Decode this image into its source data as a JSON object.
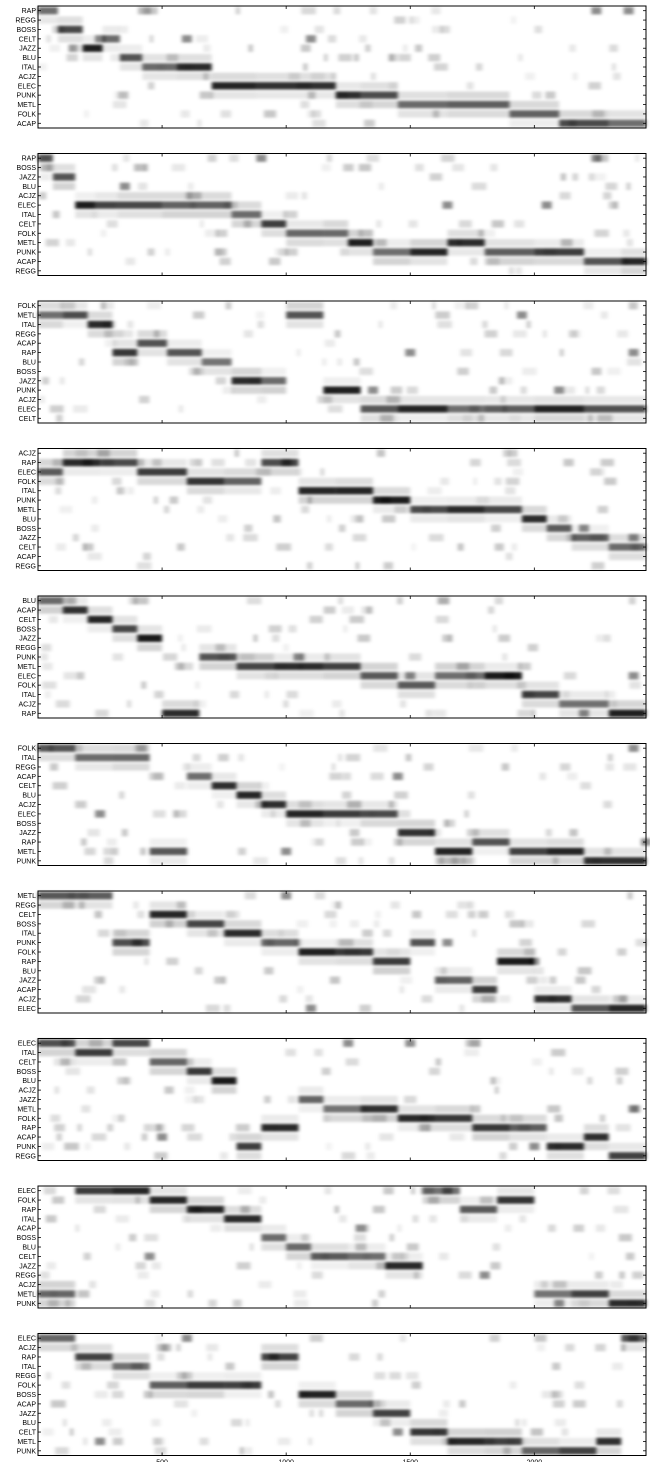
{
  "chart_data": {
    "type": "heatmap",
    "xlim": [
      0,
      2450
    ],
    "x_ticks": [
      500,
      1000,
      1500,
      2000
    ],
    "x_tick_labels": [
      "500",
      "1000",
      "1500",
      "2000"
    ],
    "colormap": "gray_r",
    "panels": [
      {
        "rows": [
          "RAP",
          "REGG",
          "BOSS",
          "CELT",
          "JAZZ",
          "BLU",
          "ITAL",
          "ACJZ",
          "ELEC",
          "PUNK",
          "METL",
          "FOLK",
          "ACAP"
        ],
        "path": [
          [
            0,
            80,
            0
          ],
          [
            80,
            180,
            2
          ],
          [
            180,
            260,
            4
          ],
          [
            260,
            330,
            3
          ],
          [
            330,
            420,
            5
          ],
          [
            420,
            560,
            6
          ],
          [
            560,
            700,
            6
          ],
          [
            700,
            880,
            8
          ],
          [
            880,
            1200,
            8
          ],
          [
            1200,
            1300,
            9
          ],
          [
            1300,
            1450,
            9
          ],
          [
            1450,
            1650,
            10
          ],
          [
            1650,
            1900,
            10
          ],
          [
            1900,
            2100,
            11
          ],
          [
            2100,
            2300,
            12
          ],
          [
            2300,
            2450,
            12
          ]
        ],
        "spots": [
          [
            250,
            3
          ],
          [
            600,
            3
          ],
          [
            1100,
            3
          ],
          [
            2250,
            0
          ],
          [
            2380,
            0
          ]
        ]
      },
      {
        "rows": [
          "RAP",
          "BOSS",
          "JAZZ",
          "BLU",
          "ACJZ",
          "ELEC",
          "ITAL",
          "CELT",
          "FOLK",
          "METL",
          "PUNK",
          "ACAP",
          "REGG"
        ],
        "path": [
          [
            0,
            60,
            0
          ],
          [
            60,
            150,
            2
          ],
          [
            150,
            230,
            5
          ],
          [
            230,
            320,
            5
          ],
          [
            320,
            500,
            5
          ],
          [
            500,
            780,
            5
          ],
          [
            780,
            900,
            6
          ],
          [
            900,
            1000,
            7
          ],
          [
            1000,
            1150,
            8
          ],
          [
            1150,
            1250,
            8
          ],
          [
            1250,
            1350,
            9
          ],
          [
            1350,
            1500,
            10
          ],
          [
            1500,
            1650,
            10
          ],
          [
            1650,
            1800,
            9
          ],
          [
            1800,
            2000,
            10
          ],
          [
            2000,
            2200,
            10
          ],
          [
            2200,
            2350,
            11
          ],
          [
            2350,
            2450,
            11
          ]
        ],
        "spots": [
          [
            900,
            0
          ],
          [
            1650,
            5
          ],
          [
            2050,
            5
          ],
          [
            350,
            3
          ],
          [
            2250,
            0
          ]
        ]
      },
      {
        "rows": [
          "FOLK",
          "METL",
          "ITAL",
          "REGG",
          "ACAP",
          "RAP",
          "BLU",
          "BOSS",
          "JAZZ",
          "PUNK",
          "ACJZ",
          "ELEC",
          "CELT"
        ],
        "path": [
          [
            0,
            100,
            1
          ],
          [
            100,
            200,
            1
          ],
          [
            200,
            300,
            2
          ],
          [
            300,
            400,
            5
          ],
          [
            400,
            520,
            4
          ],
          [
            520,
            660,
            5
          ],
          [
            660,
            780,
            6
          ],
          [
            780,
            900,
            8
          ],
          [
            900,
            1000,
            8
          ],
          [
            1000,
            1150,
            1
          ],
          [
            1150,
            1300,
            9
          ],
          [
            1300,
            1450,
            11
          ],
          [
            1450,
            1650,
            11
          ],
          [
            1650,
            1800,
            11
          ],
          [
            1800,
            2000,
            11
          ],
          [
            2000,
            2200,
            11
          ],
          [
            2200,
            2450,
            11
          ]
        ],
        "spots": [
          [
            1350,
            9
          ],
          [
            1950,
            1
          ],
          [
            2100,
            9
          ],
          [
            2400,
            5
          ],
          [
            1500,
            5
          ]
        ]
      },
      {
        "rows": [
          "ACJZ",
          "RAP",
          "ELEC",
          "FOLK",
          "ITAL",
          "PUNK",
          "METL",
          "BLU",
          "BOSS",
          "JAZZ",
          "CELT",
          "ACAP",
          "REGG"
        ],
        "path": [
          [
            0,
            100,
            2
          ],
          [
            100,
            250,
            1
          ],
          [
            250,
            400,
            1
          ],
          [
            400,
            600,
            2
          ],
          [
            600,
            750,
            3
          ],
          [
            750,
            900,
            3
          ],
          [
            900,
            1050,
            1
          ],
          [
            1050,
            1200,
            4
          ],
          [
            1200,
            1350,
            4
          ],
          [
            1350,
            1500,
            5
          ],
          [
            1500,
            1650,
            6
          ],
          [
            1650,
            1800,
            6
          ],
          [
            1800,
            1950,
            6
          ],
          [
            1950,
            2050,
            7
          ],
          [
            2050,
            2150,
            8
          ],
          [
            2150,
            2300,
            9
          ],
          [
            2300,
            2450,
            10
          ]
        ],
        "spots": [
          [
            200,
            1
          ],
          [
            1000,
            1
          ],
          [
            1400,
            5
          ],
          [
            2200,
            8
          ],
          [
            2400,
            9
          ]
        ]
      },
      {
        "rows": [
          "BLU",
          "ACAP",
          "CELT",
          "BOSS",
          "JAZZ",
          "REGG",
          "PUNK",
          "METL",
          "ELEC",
          "FOLK",
          "ITAL",
          "ACJZ",
          "RAP"
        ],
        "path": [
          [
            0,
            100,
            0
          ],
          [
            100,
            200,
            1
          ],
          [
            200,
            300,
            2
          ],
          [
            300,
            400,
            3
          ],
          [
            400,
            500,
            4
          ],
          [
            500,
            650,
            12
          ],
          [
            650,
            800,
            6
          ],
          [
            800,
            950,
            7
          ],
          [
            950,
            1150,
            7
          ],
          [
            1150,
            1300,
            7
          ],
          [
            1300,
            1450,
            8
          ],
          [
            1450,
            1600,
            9
          ],
          [
            1600,
            1800,
            8
          ],
          [
            1800,
            1950,
            8
          ],
          [
            1950,
            2100,
            10
          ],
          [
            2100,
            2300,
            11
          ],
          [
            2300,
            2450,
            12
          ]
        ],
        "spots": [
          [
            1050,
            6
          ],
          [
            1500,
            8
          ],
          [
            1900,
            8
          ],
          [
            2200,
            12
          ],
          [
            2400,
            8
          ]
        ]
      },
      {
        "rows": [
          "FOLK",
          "ITAL",
          "REGG",
          "ACAP",
          "CELT",
          "BLU",
          "ACJZ",
          "ELEC",
          "BOSS",
          "JAZZ",
          "RAP",
          "METL",
          "PUNK"
        ],
        "path": [
          [
            0,
            150,
            0
          ],
          [
            150,
            300,
            1
          ],
          [
            300,
            450,
            1
          ],
          [
            450,
            600,
            11
          ],
          [
            600,
            700,
            3
          ],
          [
            700,
            800,
            4
          ],
          [
            800,
            900,
            5
          ],
          [
            900,
            1000,
            6
          ],
          [
            1000,
            1150,
            7
          ],
          [
            1150,
            1300,
            7
          ],
          [
            1300,
            1450,
            7
          ],
          [
            1450,
            1600,
            9
          ],
          [
            1600,
            1750,
            11
          ],
          [
            1750,
            1900,
            10
          ],
          [
            1900,
            2050,
            11
          ],
          [
            2050,
            2200,
            11
          ],
          [
            2200,
            2450,
            12
          ]
        ],
        "spots": [
          [
            250,
            7
          ],
          [
            1000,
            11
          ],
          [
            1450,
            3
          ],
          [
            2400,
            0
          ],
          [
            2450,
            10
          ]
        ]
      },
      {
        "rows": [
          "METL",
          "REGG",
          "CELT",
          "BOSS",
          "ITAL",
          "PUNK",
          "FOLK",
          "RAP",
          "BLU",
          "JAZZ",
          "ACAP",
          "ACJZ",
          "ELEC"
        ],
        "path": [
          [
            0,
            150,
            0
          ],
          [
            150,
            300,
            0
          ],
          [
            300,
            450,
            5
          ],
          [
            450,
            600,
            2
          ],
          [
            600,
            750,
            3
          ],
          [
            750,
            900,
            4
          ],
          [
            900,
            1050,
            5
          ],
          [
            1050,
            1200,
            6
          ],
          [
            1200,
            1350,
            6
          ],
          [
            1350,
            1500,
            7
          ],
          [
            1500,
            1600,
            5
          ],
          [
            1600,
            1750,
            9
          ],
          [
            1750,
            1850,
            10
          ],
          [
            1850,
            2000,
            7
          ],
          [
            2000,
            2150,
            11
          ],
          [
            2150,
            2300,
            12
          ],
          [
            2300,
            2450,
            12
          ]
        ],
        "spots": [
          [
            1000,
            0
          ],
          [
            1100,
            12
          ],
          [
            2000,
            7
          ],
          [
            1650,
            5
          ],
          [
            400,
            5
          ]
        ]
      },
      {
        "rows": [
          "ELEC",
          "ITAL",
          "CELT",
          "BOSS",
          "BLU",
          "ACJZ",
          "JAZZ",
          "METL",
          "FOLK",
          "RAP",
          "ACAP",
          "PUNK",
          "REGG"
        ],
        "path": [
          [
            0,
            150,
            0
          ],
          [
            150,
            300,
            1
          ],
          [
            300,
            450,
            0
          ],
          [
            450,
            600,
            2
          ],
          [
            600,
            700,
            3
          ],
          [
            700,
            800,
            4
          ],
          [
            800,
            900,
            11
          ],
          [
            900,
            1050,
            9
          ],
          [
            1050,
            1150,
            6
          ],
          [
            1150,
            1300,
            7
          ],
          [
            1300,
            1450,
            7
          ],
          [
            1450,
            1600,
            8
          ],
          [
            1600,
            1750,
            8
          ],
          [
            1750,
            1900,
            9
          ],
          [
            1900,
            2050,
            9
          ],
          [
            2050,
            2200,
            11
          ],
          [
            2200,
            2300,
            10
          ],
          [
            2300,
            2450,
            12
          ]
        ],
        "spots": [
          [
            1250,
            0
          ],
          [
            1500,
            0
          ],
          [
            2000,
            11
          ],
          [
            2400,
            7
          ],
          [
            500,
            10
          ]
        ]
      },
      {
        "rows": [
          "ELEC",
          "FOLK",
          "RAP",
          "ITAL",
          "ACAP",
          "BOSS",
          "BLU",
          "CELT",
          "JAZZ",
          "REGG",
          "ACJZ",
          "METL",
          "PUNK"
        ],
        "path": [
          [
            0,
            150,
            11
          ],
          [
            150,
            300,
            0
          ],
          [
            300,
            450,
            0
          ],
          [
            450,
            600,
            1
          ],
          [
            600,
            750,
            2
          ],
          [
            750,
            900,
            3
          ],
          [
            900,
            1000,
            5
          ],
          [
            1000,
            1100,
            6
          ],
          [
            1100,
            1250,
            7
          ],
          [
            1250,
            1400,
            7
          ],
          [
            1400,
            1550,
            8
          ],
          [
            1550,
            1700,
            0
          ],
          [
            1700,
            1850,
            2
          ],
          [
            1850,
            2000,
            1
          ],
          [
            2000,
            2150,
            11
          ],
          [
            2150,
            2300,
            11
          ],
          [
            2300,
            2450,
            12
          ]
        ],
        "spots": [
          [
            1650,
            0
          ],
          [
            1800,
            9
          ],
          [
            2100,
            12
          ],
          [
            450,
            7
          ],
          [
            1300,
            4
          ]
        ]
      },
      {
        "rows": [
          "ELEC",
          "ACJZ",
          "RAP",
          "ITAL",
          "REGG",
          "FOLK",
          "BOSS",
          "ACAP",
          "JAZZ",
          "BLU",
          "CELT",
          "METL",
          "PUNK"
        ],
        "path": [
          [
            0,
            150,
            0
          ],
          [
            150,
            300,
            2
          ],
          [
            300,
            450,
            3
          ],
          [
            450,
            600,
            5
          ],
          [
            600,
            750,
            5
          ],
          [
            750,
            900,
            5
          ],
          [
            900,
            1050,
            2
          ],
          [
            1050,
            1200,
            6
          ],
          [
            1200,
            1350,
            7
          ],
          [
            1350,
            1500,
            8
          ],
          [
            1500,
            1650,
            10
          ],
          [
            1650,
            1800,
            11
          ],
          [
            1800,
            1950,
            11
          ],
          [
            1950,
            2100,
            12
          ],
          [
            2100,
            2250,
            12
          ],
          [
            2250,
            2350,
            11
          ],
          [
            2350,
            2450,
            0
          ]
        ],
        "spots": [
          [
            600,
            0
          ],
          [
            250,
            11
          ],
          [
            950,
            2
          ],
          [
            1450,
            10
          ],
          [
            2400,
            0
          ]
        ]
      }
    ]
  }
}
